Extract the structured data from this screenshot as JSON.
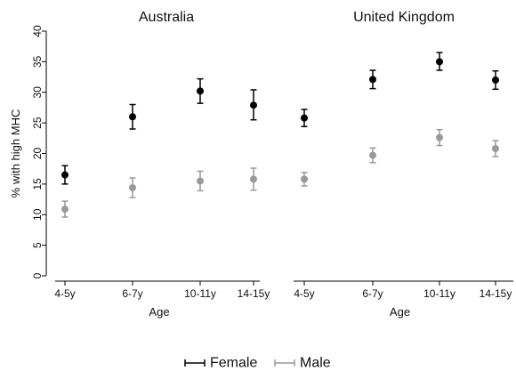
{
  "chart_data": {
    "type": "scatter",
    "ylabel": "% with high MHC",
    "xlabel": "Age",
    "categories": [
      "4-5y",
      "6-7y",
      "10-11y",
      "14-15y"
    ],
    "ylim": [
      0,
      40
    ],
    "yticks": [
      0,
      5,
      10,
      15,
      20,
      25,
      30,
      35,
      40
    ],
    "grid": false,
    "legend_position": "bottom",
    "panels": [
      {
        "title": "Australia",
        "series": [
          {
            "name": "Female",
            "color": "#000000",
            "values": [
              16.5,
              26.0,
              30.2,
              27.9
            ],
            "ci_low": [
              15.0,
              24.0,
              28.2,
              25.5
            ],
            "ci_high": [
              18.0,
              28.0,
              32.2,
              30.4
            ]
          },
          {
            "name": "Male",
            "color": "#999999",
            "values": [
              10.9,
              14.4,
              15.5,
              15.8
            ],
            "ci_low": [
              9.6,
              12.8,
              13.9,
              14.0
            ],
            "ci_high": [
              12.2,
              16.0,
              17.1,
              17.6
            ]
          }
        ]
      },
      {
        "title": "United Kingdom",
        "series": [
          {
            "name": "Female",
            "color": "#000000",
            "values": [
              25.8,
              32.1,
              35.0,
              32.0
            ],
            "ci_low": [
              24.4,
              30.6,
              33.6,
              30.5
            ],
            "ci_high": [
              27.2,
              33.6,
              36.5,
              33.5
            ]
          },
          {
            "name": "Male",
            "color": "#999999",
            "values": [
              15.8,
              19.7,
              22.6,
              20.8
            ],
            "ci_low": [
              14.7,
              18.5,
              21.3,
              19.5
            ],
            "ci_high": [
              16.9,
              20.9,
              23.9,
              22.1
            ]
          }
        ]
      }
    ]
  }
}
